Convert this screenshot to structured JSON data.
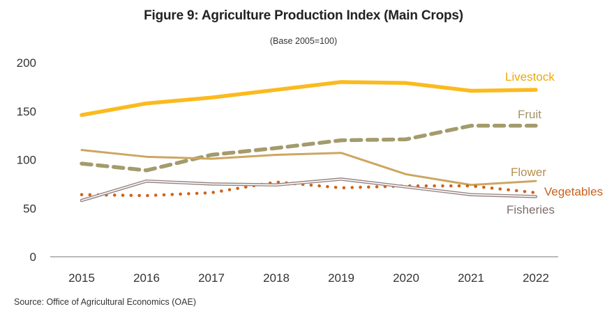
{
  "title": "Figure 9: Agriculture Production  Index (Main Crops)",
  "subtitle": "(Base 2005=100)",
  "source": "Source:  Office of Agricultural Economics (OAE)",
  "chart_data": {
    "type": "line",
    "title": "Figure 9: Agriculture Production  Index (Main Crops)",
    "subtitle": "(Base 2005=100)",
    "xlabel": "",
    "ylabel": "",
    "x": [
      "2015",
      "2016",
      "2017",
      "2018",
      "2019",
      "2020",
      "2021",
      "2022"
    ],
    "ylim": [
      0,
      200
    ],
    "yticks": [
      0,
      50,
      100,
      150,
      200
    ],
    "grid": false,
    "legend": "inline labels at right end of each line",
    "series": [
      {
        "name": "Livestock",
        "color": "#FBBA1E",
        "label_color": "#F0A800",
        "style": "solid-thick",
        "values": [
          146,
          158,
          164,
          172,
          180,
          179,
          171,
          172
        ]
      },
      {
        "name": "Fruit",
        "color": "#A39B6C",
        "label_color": "#A39468",
        "style": "dashed",
        "values": [
          96,
          89,
          105,
          112,
          120,
          121,
          135,
          135
        ]
      },
      {
        "name": "Flower",
        "color": "#CDA660",
        "label_color": "#B68F4C",
        "style": "solid",
        "values": [
          110,
          103,
          101,
          105,
          107,
          85,
          74,
          78
        ]
      },
      {
        "name": "Vegetables",
        "color": "#CC6418",
        "label_color": "#C8601A",
        "style": "dotted",
        "values": [
          64,
          63,
          66,
          77,
          71,
          73,
          73,
          66
        ]
      },
      {
        "name": "Fisheries",
        "color": "#988585",
        "label_color": "#7F6C6C",
        "style": "double",
        "values": [
          58,
          78,
          75,
          74,
          80,
          72,
          64,
          62
        ]
      }
    ]
  }
}
